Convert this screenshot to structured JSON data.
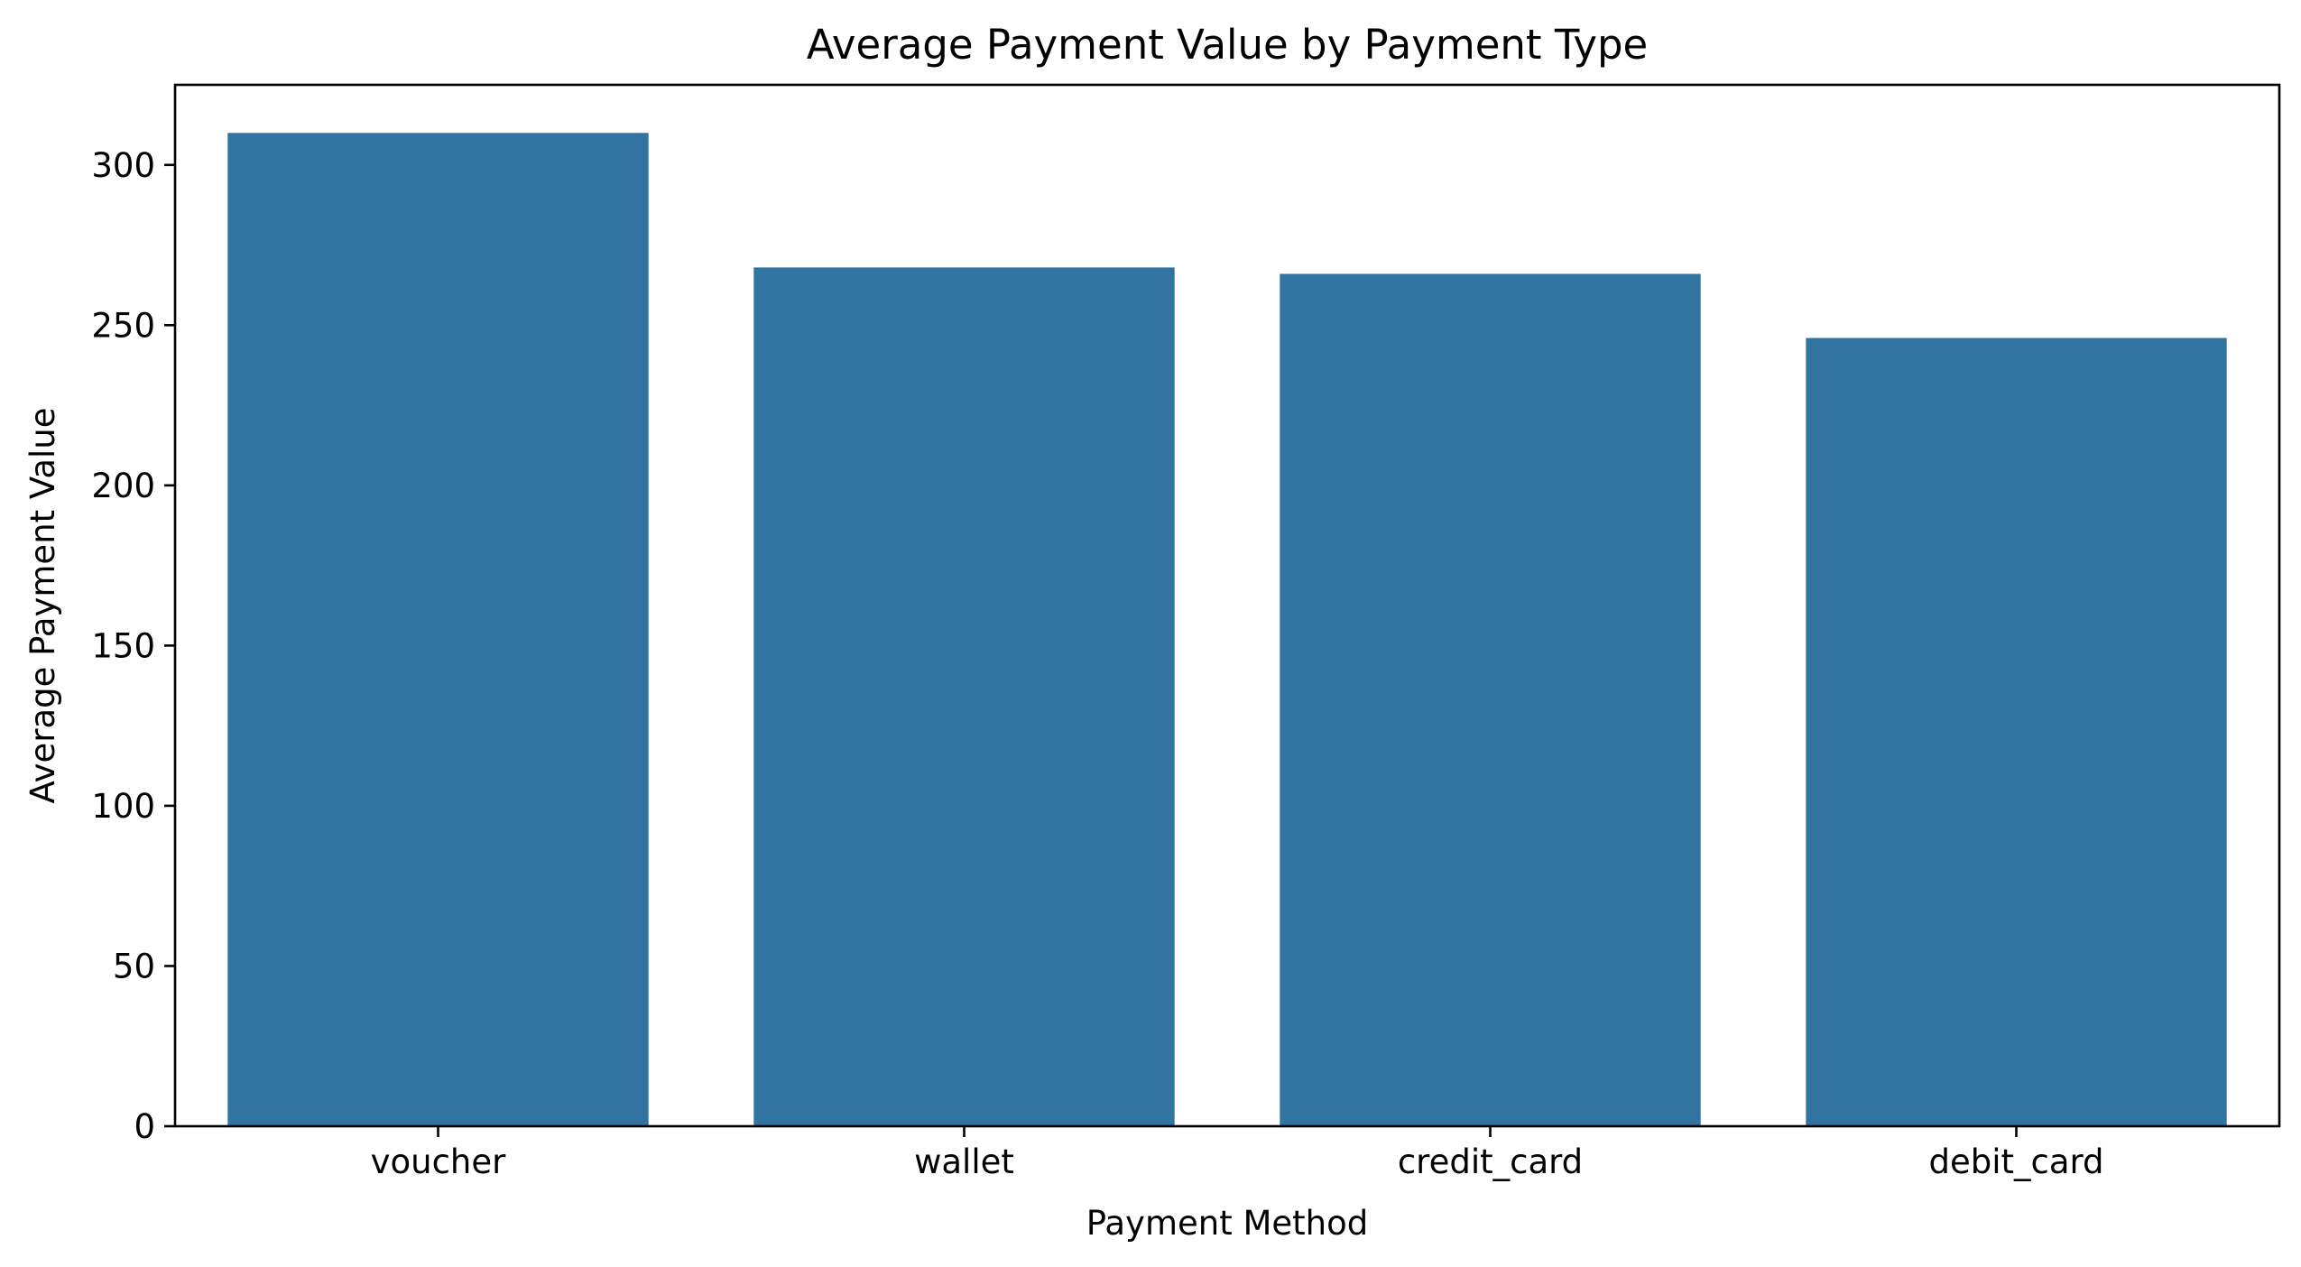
{
  "chart_data": {
    "type": "bar",
    "title": "Average Payment Value by Payment Type",
    "xlabel": "Payment Method",
    "ylabel": "Average Payment Value",
    "categories": [
      "voucher",
      "wallet",
      "credit_card",
      "debit_card"
    ],
    "values": [
      310,
      268,
      266,
      246
    ],
    "ylim": [
      0,
      325
    ],
    "yticks": [
      0,
      50,
      100,
      150,
      200,
      250,
      300
    ],
    "bar_color": "#3274a1",
    "grid": false,
    "legend": "none"
  }
}
